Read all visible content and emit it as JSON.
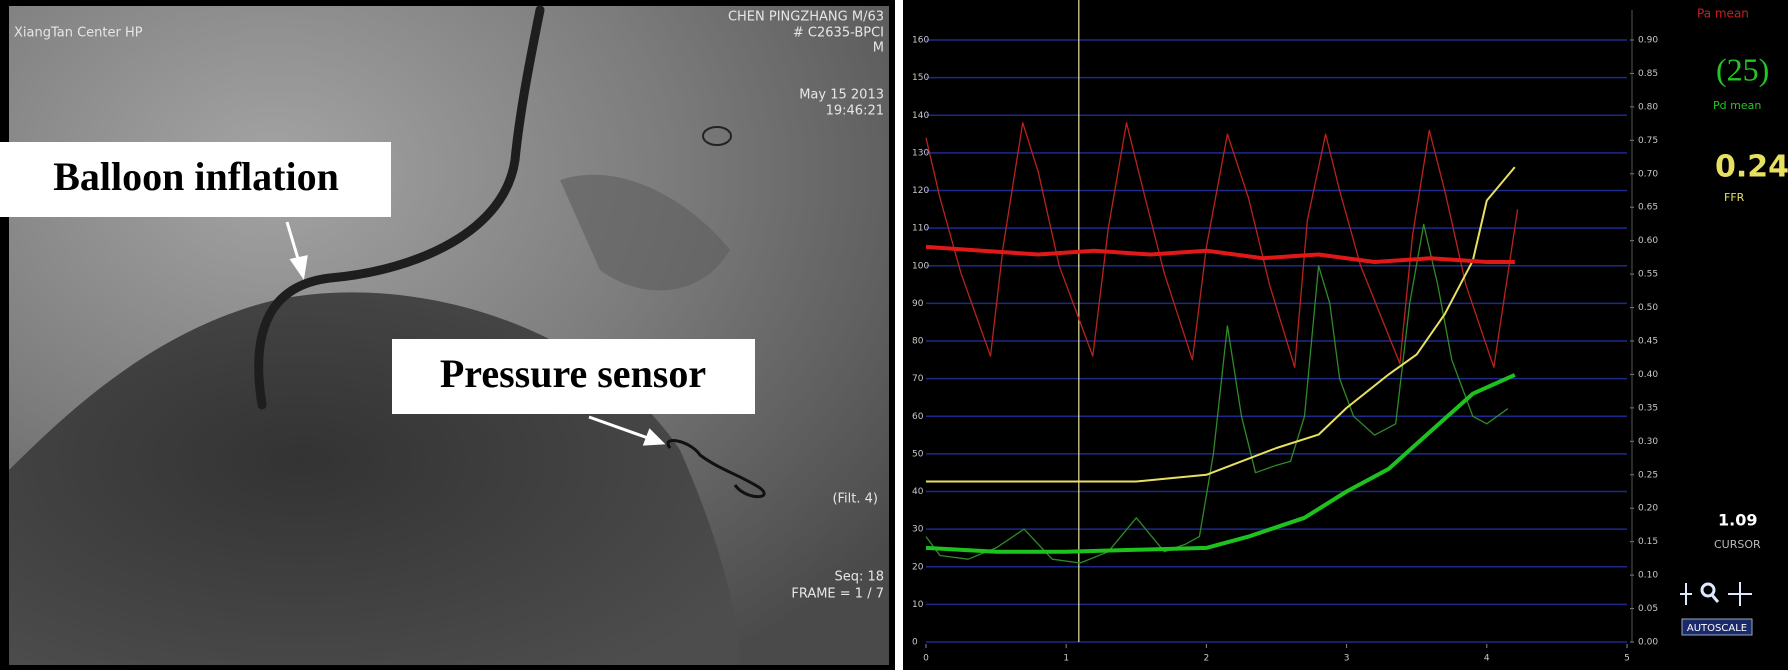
{
  "angiogram": {
    "site": "XiangTan Center HP",
    "patient_lines": [
      "CHEN PINGZHANG M/63",
      "# C2635-BPCI",
      "M"
    ],
    "date": "May 15 2013",
    "time": "19:46:21",
    "filter": "(Filt. 4)",
    "seq": "Seq: 18",
    "frame": "FRAME = 1 / 7",
    "annotations": [
      "Balloon inflation",
      "Pressure sensor"
    ]
  },
  "chart_data": {
    "type": "line",
    "xlim": [
      0,
      5
    ],
    "xticks": [
      0,
      1,
      2,
      3,
      4,
      5
    ],
    "ylim": [
      0,
      160
    ],
    "yticks": [
      0,
      10,
      20,
      30,
      40,
      50,
      60,
      70,
      80,
      90,
      100,
      110,
      120,
      130,
      140,
      150,
      160
    ],
    "y2lim": [
      0,
      0.9
    ],
    "y2ticks": [
      {
        "value": 0,
        "label": "0.00"
      },
      0.05,
      {
        "value": 0.1,
        "label": "0.10"
      },
      0.15,
      {
        "value": 0.2,
        "label": "0.20"
      },
      0.25,
      {
        "value": 0.3,
        "label": "0.30"
      },
      0.35,
      {
        "value": 0.4,
        "label": "0.40"
      },
      0.45,
      {
        "value": 0.5,
        "label": "0.50"
      },
      0.55,
      {
        "value": 0.6,
        "label": "0.60"
      },
      0.65,
      {
        "value": 0.7,
        "label": "0.70"
      },
      0.75,
      {
        "value": 0.8,
        "label": "0.80"
      },
      0.85,
      {
        "value": 0.9,
        "label": "0.90"
      }
    ],
    "grid": true,
    "grid_color": "#1c2a8c",
    "cursor": 1.09,
    "cursor_color": "#e8e4a0",
    "series": [
      {
        "color": "#b8241c",
        "width": 1.3,
        "x": [
          0,
          0.1,
          0.25,
          0.46,
          0.55,
          0.69,
          0.8,
          0.95,
          1.19,
          1.3,
          1.43,
          1.55,
          1.7,
          1.9,
          2.0,
          2.15,
          2.3,
          2.45,
          2.63,
          2.72,
          2.85,
          2.95,
          3.1,
          3.38,
          3.47,
          3.59,
          3.7,
          3.85,
          4.05,
          4.22
        ],
        "values": [
          134,
          118,
          98,
          76,
          105,
          138,
          125,
          100,
          76,
          110,
          138,
          120,
          98,
          75,
          105,
          135,
          118,
          95,
          73,
          112,
          135,
          120,
          100,
          74,
          108,
          136,
          120,
          95,
          73,
          115
        ]
      },
      {
        "color": "#2f8a2a",
        "width": 1.3,
        "x": [
          0,
          0.1,
          0.3,
          0.5,
          0.7,
          0.9,
          1.1,
          1.3,
          1.5,
          1.7,
          1.85,
          1.95,
          2.05,
          2.15,
          2.25,
          2.35,
          2.5,
          2.6,
          2.7,
          2.8,
          2.88,
          2.95,
          3.05,
          3.2,
          3.35,
          3.45,
          3.55,
          3.65,
          3.75,
          3.9,
          4.0,
          4.15
        ],
        "values": [
          28,
          23,
          22,
          25,
          30,
          22,
          21,
          24,
          33,
          24,
          26,
          28,
          50,
          84,
          60,
          45,
          47,
          48,
          60,
          100,
          90,
          70,
          60,
          55,
          58,
          90,
          111,
          95,
          75,
          60,
          58,
          62
        ]
      },
      {
        "color": "#e8e060",
        "width": 2,
        "axis": "y2",
        "x": [
          0,
          0.5,
          1,
          1.5,
          2,
          2.5,
          2.8,
          3,
          3.3,
          3.5,
          3.7,
          3.9,
          4.0,
          4.2
        ],
        "values": [
          0.24,
          0.24,
          0.24,
          0.24,
          0.25,
          0.29,
          0.31,
          0.35,
          0.4,
          0.43,
          0.49,
          0.57,
          0.66,
          0.71
        ]
      },
      {
        "color": "#e01818",
        "width": 4,
        "x": [
          0,
          0.4,
          0.8,
          1.2,
          1.6,
          2.0,
          2.4,
          2.8,
          3.2,
          3.6,
          4.0,
          4.2
        ],
        "values": [
          105,
          104,
          103,
          104,
          103,
          104,
          102,
          103,
          101,
          102,
          101,
          101
        ]
      },
      {
        "color": "#1ec21e",
        "width": 4,
        "x": [
          0,
          0.5,
          1,
          1.5,
          2,
          2.3,
          2.7,
          3,
          3.3,
          3.6,
          3.9,
          4.2
        ],
        "values": [
          25,
          24,
          24,
          24.5,
          25,
          28,
          33,
          40,
          46,
          56,
          66,
          71
        ]
      }
    ],
    "pa_mean_label": "Pa mean",
    "pd_mean": "(25)",
    "pd_mean_label": "Pd mean",
    "ffr": 0.24,
    "ffr_label": "FFR",
    "cursor_label": "CURSOR",
    "autoscale": "AUTOSCALE"
  }
}
